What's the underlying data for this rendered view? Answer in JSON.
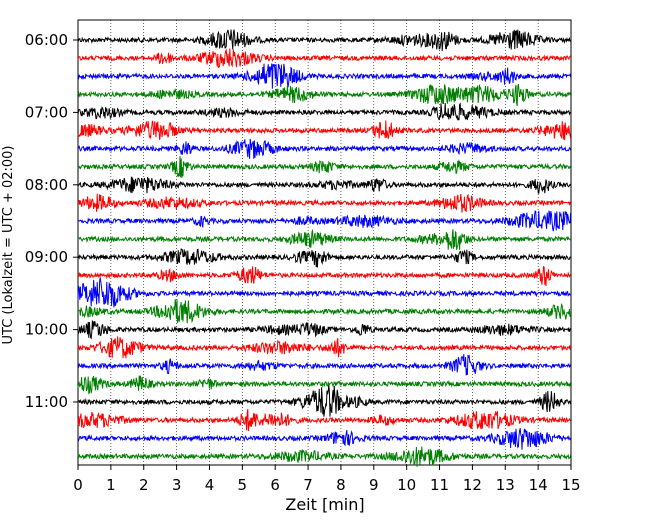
{
  "chart_data": {
    "type": "line",
    "xlabel": "Zeit  [min]",
    "ylabel": "UTC (Lokalzeit = UTC + 02:00)",
    "xlim": [
      0,
      15
    ],
    "x_ticks": [
      "0",
      "1",
      "2",
      "3",
      "4",
      "5",
      "6",
      "7",
      "8",
      "9",
      "10",
      "11",
      "12",
      "13",
      "14",
      "15"
    ],
    "y_tick_labels": [
      "06:00",
      "07:00",
      "08:00",
      "09:00",
      "10:00",
      "11:00"
    ],
    "grid": "vertical dotted",
    "trace_interval_minutes": 15,
    "start_time": "06:00",
    "traces": [
      {
        "start": "06:00",
        "color": "#000000"
      },
      {
        "start": "06:15",
        "color": "#ff0000"
      },
      {
        "start": "06:30",
        "color": "#0000ff"
      },
      {
        "start": "06:45",
        "color": "#008000"
      },
      {
        "start": "07:00",
        "color": "#000000"
      },
      {
        "start": "07:15",
        "color": "#ff0000"
      },
      {
        "start": "07:30",
        "color": "#0000ff"
      },
      {
        "start": "07:45",
        "color": "#008000"
      },
      {
        "start": "08:00",
        "color": "#000000"
      },
      {
        "start": "08:15",
        "color": "#ff0000"
      },
      {
        "start": "08:30",
        "color": "#0000ff"
      },
      {
        "start": "08:45",
        "color": "#008000"
      },
      {
        "start": "09:00",
        "color": "#000000"
      },
      {
        "start": "09:15",
        "color": "#ff0000"
      },
      {
        "start": "09:30",
        "color": "#0000ff"
      },
      {
        "start": "09:45",
        "color": "#008000"
      },
      {
        "start": "10:00",
        "color": "#000000"
      },
      {
        "start": "10:15",
        "color": "#ff0000"
      },
      {
        "start": "10:30",
        "color": "#0000ff"
      },
      {
        "start": "10:45",
        "color": "#008000"
      },
      {
        "start": "11:00",
        "color": "#000000"
      },
      {
        "start": "11:15",
        "color": "#ff0000"
      },
      {
        "start": "11:30",
        "color": "#0000ff"
      },
      {
        "start": "11:45",
        "color": "#008000"
      }
    ]
  }
}
